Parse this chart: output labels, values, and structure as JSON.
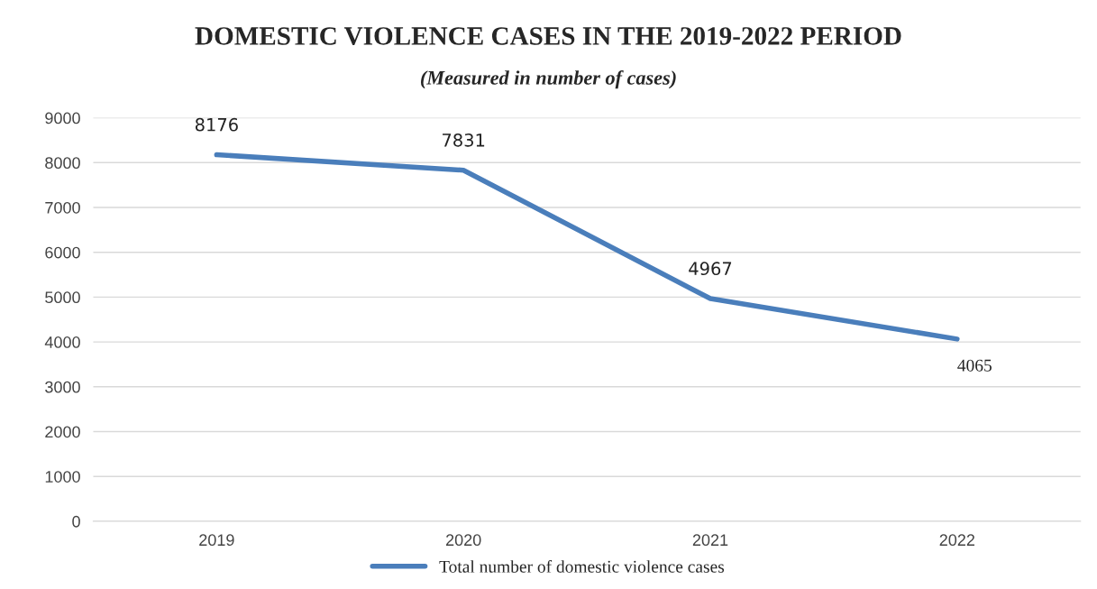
{
  "chart_data": {
    "type": "line",
    "title": "DOMESTIC VIOLENCE CASES IN THE 2019-2022 PERIOD",
    "subtitle": "(Measured in number of cases)",
    "categories": [
      "2019",
      "2020",
      "2021",
      "2022"
    ],
    "series": [
      {
        "name": "Total number of domestic violence cases",
        "color": "#4a7ebb",
        "values": [
          8176,
          7831,
          4967,
          4065
        ]
      }
    ],
    "ylim": [
      0,
      9000
    ],
    "yticks": [
      0,
      1000,
      2000,
      3000,
      4000,
      5000,
      6000,
      7000,
      8000,
      9000
    ],
    "grid": "y",
    "legend": "bottom",
    "data_labels": true,
    "marker": "none",
    "line_style": "solid"
  }
}
